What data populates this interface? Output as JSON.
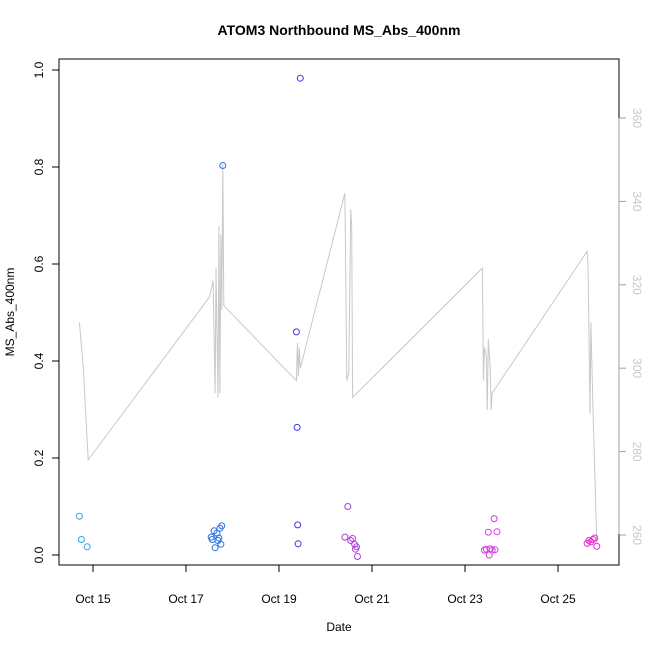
{
  "chart_data": {
    "type": "scatter",
    "title": "ATOM3 Northbound MS_Abs_400nm",
    "xlabel": "Date",
    "ylabel": "MS_Abs_400nm",
    "xlim": [
      "2016-10-14T00:00",
      "2016-10-26T00:00"
    ],
    "ylim": [
      0,
      1.0
    ],
    "x_ticks": [
      {
        "date": "2016-10-15T00:00",
        "label": "Oct 15"
      },
      {
        "date": "2016-10-17T00:00",
        "label": "Oct 17"
      },
      {
        "date": "2016-10-19T00:00",
        "label": "Oct 19"
      },
      {
        "date": "2016-10-21T00:00",
        "label": "Oct 21"
      },
      {
        "date": "2016-10-23T00:00",
        "label": "Oct 23"
      },
      {
        "date": "2016-10-25T00:00",
        "label": "Oct 25"
      }
    ],
    "y_ticks": [
      0.0,
      0.2,
      0.4,
      0.6,
      0.8,
      1.0
    ],
    "y_tick_labels": [
      "0.0",
      "0.2",
      "0.4",
      "0.6",
      "0.8",
      "1.0"
    ],
    "y2_ticks": [
      260,
      280,
      300,
      320,
      340,
      360
    ],
    "y2_tick_labels": [
      "260",
      "280",
      "300",
      "320",
      "340",
      "360"
    ],
    "y2_range": [
      250,
      365
    ],
    "grid": false,
    "legend": "none",
    "colors": {
      "line": "#c8c8c8",
      "y2_tick_text": "#c8c8c8",
      "axis": "#000000",
      "y2_axis": "#a0a0a0"
    },
    "points": [
      {
        "x": "2016-10-14T17:00",
        "y": 0.08,
        "color": "#29a6e0"
      },
      {
        "x": "2016-10-14T18:00",
        "y": 0.032,
        "color": "#29a6e0"
      },
      {
        "x": "2016-10-14T21:00",
        "y": 0.017,
        "color": "#29a6e0"
      },
      {
        "x": "2016-10-17T13:00",
        "y": 0.037,
        "color": "#2a72e2"
      },
      {
        "x": "2016-10-17T13:30",
        "y": 0.032,
        "color": "#2a72e2"
      },
      {
        "x": "2016-10-17T14:30",
        "y": 0.05,
        "color": "#2a72e2"
      },
      {
        "x": "2016-10-17T15:00",
        "y": 0.015,
        "color": "#2a72e2"
      },
      {
        "x": "2016-10-17T16:00",
        "y": 0.045,
        "color": "#2a72e2"
      },
      {
        "x": "2016-10-17T16:30",
        "y": 0.03,
        "color": "#2a72e2"
      },
      {
        "x": "2016-10-17T17:00",
        "y": 0.035,
        "color": "#2a72e2"
      },
      {
        "x": "2016-10-17T17:30",
        "y": 0.055,
        "color": "#2a72e2"
      },
      {
        "x": "2016-10-17T18:00",
        "y": 0.022,
        "color": "#2a72e2"
      },
      {
        "x": "2016-10-17T18:30",
        "y": 0.06,
        "color": "#2a72e2"
      },
      {
        "x": "2016-10-17T19:00",
        "y": 0.803,
        "color": "#2a72e2"
      },
      {
        "x": "2016-10-19T09:00",
        "y": 0.46,
        "color": "#3a3ae0"
      },
      {
        "x": "2016-10-19T09:20",
        "y": 0.263,
        "color": "#3a3ae0"
      },
      {
        "x": "2016-10-19T09:40",
        "y": 0.062,
        "color": "#3a3ae0"
      },
      {
        "x": "2016-10-19T09:50",
        "y": 0.023,
        "color": "#3a3ae0"
      },
      {
        "x": "2016-10-19T11:00",
        "y": 0.983,
        "color": "#3a3ae0"
      },
      {
        "x": "2016-10-20T10:00",
        "y": 0.037,
        "color": "#b23ae0"
      },
      {
        "x": "2016-10-20T11:30",
        "y": 0.1,
        "color": "#b23ae0"
      },
      {
        "x": "2016-10-20T13:00",
        "y": 0.03,
        "color": "#b23ae0"
      },
      {
        "x": "2016-10-20T14:00",
        "y": 0.034,
        "color": "#b23ae0"
      },
      {
        "x": "2016-10-20T15:00",
        "y": 0.022,
        "color": "#b23ae0"
      },
      {
        "x": "2016-10-20T15:30",
        "y": 0.012,
        "color": "#b23ae0"
      },
      {
        "x": "2016-10-20T16:00",
        "y": 0.017,
        "color": "#b23ae0"
      },
      {
        "x": "2016-10-20T16:30",
        "y": -0.003,
        "color": "#b23ae0"
      },
      {
        "x": "2016-10-23T10:00",
        "y": 0.01,
        "color": "#d23ae6"
      },
      {
        "x": "2016-10-23T11:00",
        "y": 0.012,
        "color": "#d23ae6"
      },
      {
        "x": "2016-10-23T12:00",
        "y": 0.047,
        "color": "#d23ae6"
      },
      {
        "x": "2016-10-23T12:30",
        "y": 0.0,
        "color": "#d23ae6"
      },
      {
        "x": "2016-10-23T13:00",
        "y": 0.013,
        "color": "#d23ae6"
      },
      {
        "x": "2016-10-23T14:00",
        "y": 0.01,
        "color": "#d23ae6"
      },
      {
        "x": "2016-10-23T15:00",
        "y": 0.075,
        "color": "#d23ae6"
      },
      {
        "x": "2016-10-23T15:30",
        "y": 0.011,
        "color": "#d23ae6"
      },
      {
        "x": "2016-10-23T16:30",
        "y": 0.048,
        "color": "#d23ae6"
      },
      {
        "x": "2016-10-25T15:00",
        "y": 0.024,
        "color": "#e62ad2"
      },
      {
        "x": "2016-10-25T16:00",
        "y": 0.03,
        "color": "#e62ad2"
      },
      {
        "x": "2016-10-25T17:00",
        "y": 0.027,
        "color": "#e62ad2"
      },
      {
        "x": "2016-10-25T18:00",
        "y": 0.032,
        "color": "#e62ad2"
      },
      {
        "x": "2016-10-25T19:00",
        "y": 0.035,
        "color": "#e62ad2"
      },
      {
        "x": "2016-10-25T20:00",
        "y": 0.018,
        "color": "#e62ad2"
      }
    ],
    "line_y2": [
      {
        "x": "2016-10-14T17:00",
        "y": 311
      },
      {
        "x": "2016-10-14T19:00",
        "y": 300
      },
      {
        "x": "2016-10-14T21:30",
        "y": 278
      },
      {
        "x": "2016-10-17T12:00",
        "y": 317
      },
      {
        "x": "2016-10-17T14:00",
        "y": 321
      },
      {
        "x": "2016-10-17T15:00",
        "y": 294
      },
      {
        "x": "2016-10-17T15:30",
        "y": 324
      },
      {
        "x": "2016-10-17T16:30",
        "y": 293
      },
      {
        "x": "2016-10-17T17:00",
        "y": 334
      },
      {
        "x": "2016-10-17T17:30",
        "y": 294
      },
      {
        "x": "2016-10-17T18:00",
        "y": 332
      },
      {
        "x": "2016-10-17T18:30",
        "y": 314
      },
      {
        "x": "2016-10-17T19:00",
        "y": 349
      },
      {
        "x": "2016-10-17T19:30",
        "y": 315
      },
      {
        "x": "2016-10-19T09:00",
        "y": 297
      },
      {
        "x": "2016-10-19T09:30",
        "y": 306
      },
      {
        "x": "2016-10-19T10:00",
        "y": 298
      },
      {
        "x": "2016-10-19T10:30",
        "y": 305
      },
      {
        "x": "2016-10-19T11:00",
        "y": 300
      },
      {
        "x": "2016-10-20T10:00",
        "y": 342
      },
      {
        "x": "2016-10-20T11:00",
        "y": 297
      },
      {
        "x": "2016-10-20T12:00",
        "y": 299
      },
      {
        "x": "2016-10-20T13:00",
        "y": 338
      },
      {
        "x": "2016-10-20T13:30",
        "y": 334
      },
      {
        "x": "2016-10-20T14:00",
        "y": 293
      },
      {
        "x": "2016-10-23T09:00",
        "y": 324
      },
      {
        "x": "2016-10-23T09:30",
        "y": 297
      },
      {
        "x": "2016-10-23T10:00",
        "y": 305
      },
      {
        "x": "2016-10-23T11:00",
        "y": 303
      },
      {
        "x": "2016-10-23T11:30",
        "y": 290
      },
      {
        "x": "2016-10-23T12:00",
        "y": 307
      },
      {
        "x": "2016-10-23T13:00",
        "y": 300
      },
      {
        "x": "2016-10-23T13:30",
        "y": 290
      },
      {
        "x": "2016-10-23T14:00",
        "y": 294
      },
      {
        "x": "2016-10-25T15:00",
        "y": 328
      },
      {
        "x": "2016-10-25T15:30",
        "y": 325
      },
      {
        "x": "2016-10-25T16:30",
        "y": 289
      },
      {
        "x": "2016-10-25T17:00",
        "y": 311
      },
      {
        "x": "2016-10-25T18:00",
        "y": 291
      },
      {
        "x": "2016-10-25T20:00",
        "y": 258
      }
    ]
  }
}
